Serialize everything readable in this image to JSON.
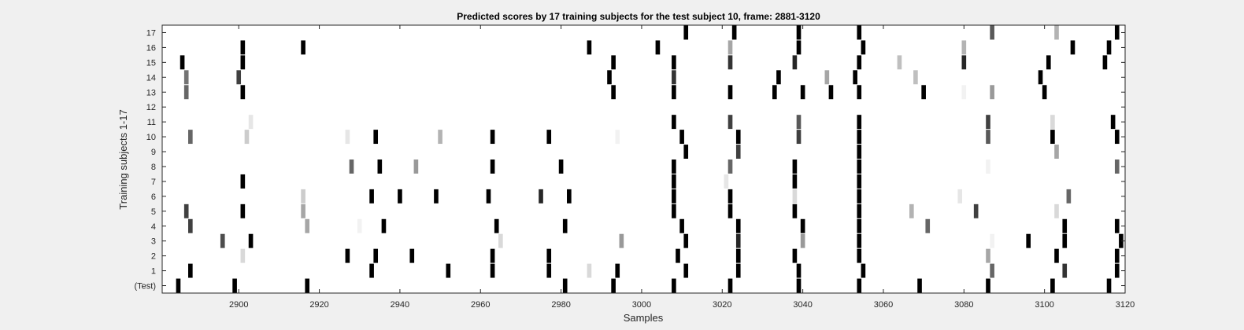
{
  "chart_data": {
    "type": "heatmap",
    "title": "Predicted scores by 17 training subjects for the test subject 10, frame: 2881-3120",
    "xlabel": "Samples",
    "ylabel": "Training subjects 1-17",
    "xlim": [
      2881,
      3120
    ],
    "x_ticks": [
      2900,
      2920,
      2940,
      2960,
      2980,
      3000,
      3020,
      3040,
      3060,
      3080,
      3100,
      3120
    ],
    "y_tick_labels": [
      "(Test)",
      "1",
      "2",
      "3",
      "4",
      "5",
      "6",
      "7",
      "8",
      "9",
      "10",
      "11",
      "12",
      "13",
      "14",
      "15",
      "16",
      "17"
    ],
    "colormap": "gray (1 = black, 0 = white)",
    "background": "#f0f0f0",
    "rows": [
      {
        "label": "(Test)",
        "marks": [
          [
            2885,
            1
          ],
          [
            2899,
            1
          ],
          [
            2917,
            1
          ],
          [
            2981,
            1
          ],
          [
            2993,
            1
          ],
          [
            3008,
            1
          ],
          [
            3022,
            1
          ],
          [
            3039,
            1
          ],
          [
            3054,
            1
          ],
          [
            3069,
            1
          ],
          [
            3086,
            1
          ],
          [
            3102,
            1
          ],
          [
            3116,
            1
          ]
        ]
      },
      {
        "label": "1",
        "marks": [
          [
            2888,
            1
          ],
          [
            2933,
            1
          ],
          [
            2952,
            1
          ],
          [
            2963,
            1
          ],
          [
            2977,
            1
          ],
          [
            2987,
            0.15
          ],
          [
            2994,
            1
          ],
          [
            3011,
            1
          ],
          [
            3024,
            1
          ],
          [
            3039,
            1
          ],
          [
            3055,
            1
          ],
          [
            3087,
            0.6
          ],
          [
            3105,
            0.8
          ],
          [
            3118,
            1
          ]
        ]
      },
      {
        "label": "2",
        "marks": [
          [
            2901,
            0.15
          ],
          [
            2927,
            1
          ],
          [
            2934,
            1
          ],
          [
            2943,
            1
          ],
          [
            2963,
            1
          ],
          [
            2977,
            1
          ],
          [
            3009,
            1
          ],
          [
            3024,
            1
          ],
          [
            3038,
            1
          ],
          [
            3054,
            1
          ],
          [
            3086,
            0.35
          ],
          [
            3103,
            1
          ],
          [
            3118,
            1
          ]
        ]
      },
      {
        "label": "3",
        "marks": [
          [
            2896,
            0.7
          ],
          [
            2903,
            1
          ],
          [
            2965,
            0.15
          ],
          [
            2995,
            0.4
          ],
          [
            3011,
            1
          ],
          [
            3024,
            0.85
          ],
          [
            3040,
            0.4
          ],
          [
            3054,
            1
          ],
          [
            3087,
            0.05
          ],
          [
            3096,
            1
          ],
          [
            3105,
            1
          ],
          [
            3119,
            1
          ]
        ]
      },
      {
        "label": "4",
        "marks": [
          [
            2888,
            0.75
          ],
          [
            2917,
            0.35
          ],
          [
            2930,
            0.05
          ],
          [
            2936,
            1
          ],
          [
            2964,
            1
          ],
          [
            2981,
            1
          ],
          [
            3010,
            1
          ],
          [
            3024,
            1
          ],
          [
            3040,
            1
          ],
          [
            3054,
            1
          ],
          [
            3071,
            0.6
          ],
          [
            3105,
            1
          ],
          [
            3118,
            1
          ]
        ]
      },
      {
        "label": "5",
        "marks": [
          [
            2887,
            0.75
          ],
          [
            2901,
            1
          ],
          [
            2916,
            0.35
          ],
          [
            3008,
            1
          ],
          [
            3022,
            1
          ],
          [
            3038,
            1
          ],
          [
            3054,
            1
          ],
          [
            3067,
            0.3
          ],
          [
            3083,
            0.75
          ],
          [
            3103,
            0.15
          ]
        ]
      },
      {
        "label": "6",
        "marks": [
          [
            2916,
            0.2
          ],
          [
            2933,
            1
          ],
          [
            2940,
            1
          ],
          [
            2949,
            1
          ],
          [
            2962,
            1
          ],
          [
            2975,
            0.85
          ],
          [
            2982,
            1
          ],
          [
            3008,
            1
          ],
          [
            3022,
            1
          ],
          [
            3038,
            0.15
          ],
          [
            3054,
            1
          ],
          [
            3079,
            0.1
          ],
          [
            3106,
            0.6
          ]
        ]
      },
      {
        "label": "7",
        "marks": [
          [
            2901,
            1
          ],
          [
            3008,
            1
          ],
          [
            3021,
            0.1
          ],
          [
            3038,
            1
          ],
          [
            3054,
            1
          ]
        ]
      },
      {
        "label": "8",
        "marks": [
          [
            2928,
            0.6
          ],
          [
            2935,
            1
          ],
          [
            2944,
            0.4
          ],
          [
            2963,
            1
          ],
          [
            2980,
            1
          ],
          [
            3008,
            1
          ],
          [
            3022,
            0.6
          ],
          [
            3038,
            1
          ],
          [
            3054,
            1
          ],
          [
            3086,
            0.05
          ],
          [
            3118,
            0.6
          ]
        ]
      },
      {
        "label": "9",
        "marks": [
          [
            3011,
            1
          ],
          [
            3024,
            0.75
          ],
          [
            3054,
            1
          ],
          [
            3103,
            0.35
          ]
        ]
      },
      {
        "label": "10",
        "marks": [
          [
            2888,
            0.6
          ],
          [
            2902,
            0.2
          ],
          [
            2927,
            0.1
          ],
          [
            2934,
            1
          ],
          [
            2950,
            0.3
          ],
          [
            2963,
            1
          ],
          [
            2977,
            1
          ],
          [
            2994,
            0.05
          ],
          [
            3010,
            1
          ],
          [
            3024,
            1
          ],
          [
            3039,
            0.75
          ],
          [
            3054,
            1
          ],
          [
            3086,
            0.65
          ],
          [
            3102,
            1
          ],
          [
            3118,
            1
          ]
        ]
      },
      {
        "label": "11",
        "marks": [
          [
            2903,
            0.1
          ],
          [
            3008,
            1
          ],
          [
            3022,
            0.75
          ],
          [
            3039,
            0.65
          ],
          [
            3054,
            1
          ],
          [
            3086,
            0.75
          ],
          [
            3102,
            0.15
          ],
          [
            3117,
            1
          ]
        ]
      },
      {
        "label": "12",
        "marks": []
      },
      {
        "label": "13",
        "marks": [
          [
            2887,
            0.6
          ],
          [
            2901,
            1
          ],
          [
            2993,
            1
          ],
          [
            3008,
            1
          ],
          [
            3022,
            1
          ],
          [
            3033,
            1
          ],
          [
            3040,
            1
          ],
          [
            3047,
            1
          ],
          [
            3054,
            1
          ],
          [
            3070,
            1
          ],
          [
            3080,
            0.05
          ],
          [
            3087,
            0.4
          ],
          [
            3100,
            1
          ]
        ]
      },
      {
        "label": "14",
        "marks": [
          [
            2887,
            0.55
          ],
          [
            2900,
            0.75
          ],
          [
            2992,
            1
          ],
          [
            3008,
            0.8
          ],
          [
            3034,
            1
          ],
          [
            3046,
            0.35
          ],
          [
            3053,
            1
          ],
          [
            3068,
            0.25
          ],
          [
            3099,
            1
          ]
        ]
      },
      {
        "label": "15",
        "marks": [
          [
            2886,
            1
          ],
          [
            2901,
            1
          ],
          [
            2993,
            1
          ],
          [
            3008,
            1
          ],
          [
            3022,
            0.8
          ],
          [
            3038,
            0.85
          ],
          [
            3054,
            1
          ],
          [
            3064,
            0.25
          ],
          [
            3080,
            0.85
          ],
          [
            3101,
            1
          ],
          [
            3115,
            1
          ]
        ]
      },
      {
        "label": "16",
        "marks": [
          [
            2901,
            1
          ],
          [
            2916,
            1
          ],
          [
            2987,
            1
          ],
          [
            3004,
            1
          ],
          [
            3022,
            0.35
          ],
          [
            3039,
            1
          ],
          [
            3055,
            1
          ],
          [
            3080,
            0.3
          ],
          [
            3107,
            1
          ],
          [
            3116,
            1
          ]
        ]
      },
      {
        "label": "17",
        "marks": [
          [
            3011,
            1
          ],
          [
            3023,
            1
          ],
          [
            3039,
            1
          ],
          [
            3054,
            1
          ],
          [
            3087,
            0.65
          ],
          [
            3103,
            0.3
          ],
          [
            3118,
            1
          ]
        ]
      }
    ]
  }
}
